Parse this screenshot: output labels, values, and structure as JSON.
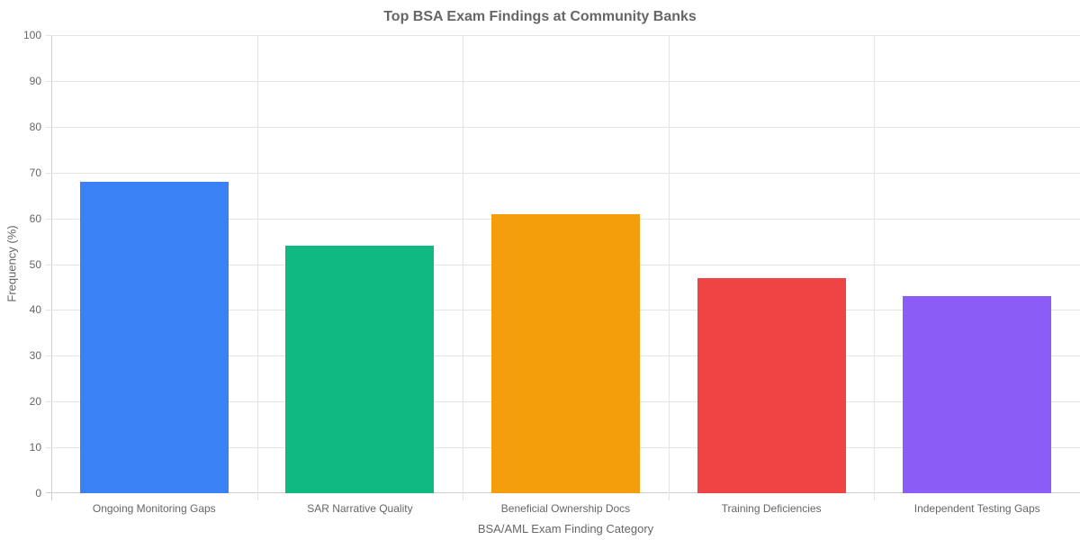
{
  "chart_data": {
    "type": "bar",
    "title": "Top BSA Exam Findings at Community Banks",
    "xlabel": "BSA/AML Exam Finding Category",
    "ylabel": "Frequency (%)",
    "ylim": [
      0,
      100
    ],
    "yticks": [
      "0",
      "10",
      "20",
      "30",
      "40",
      "50",
      "60",
      "70",
      "80",
      "90",
      "100"
    ],
    "grid": true,
    "legend": null,
    "categories": [
      "Ongoing Monitoring Gaps",
      "SAR Narrative Quality",
      "Beneficial Ownership Docs",
      "Training Deficiencies",
      "Independent Testing Gaps"
    ],
    "values": [
      68,
      54,
      61,
      47,
      43
    ],
    "colors": [
      "#3b82f6",
      "#10b981",
      "#f59e0b",
      "#ef4444",
      "#8b5cf6"
    ]
  }
}
